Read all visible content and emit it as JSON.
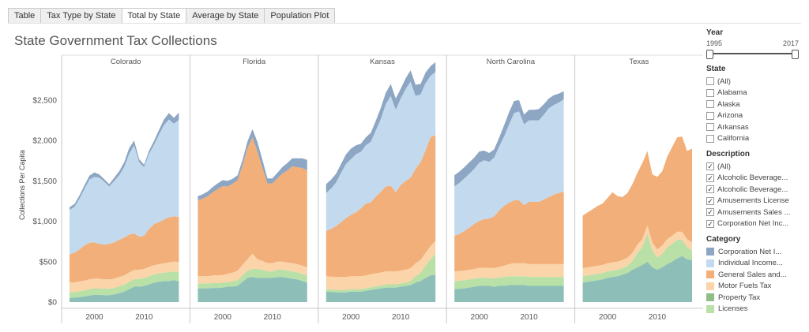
{
  "tabs": [
    {
      "label": "Table",
      "active": false
    },
    {
      "label": "Tax Type by State",
      "active": false
    },
    {
      "label": "Total by State",
      "active": true
    },
    {
      "label": "Average by State",
      "active": false
    },
    {
      "label": "Population Plot",
      "active": false
    }
  ],
  "page_title": "State Government Tax Collections",
  "filters": {
    "year": {
      "label": "Year",
      "min_label": "1995",
      "max_label": "2017",
      "range": [
        1995,
        2017
      ]
    },
    "state": {
      "label": "State",
      "items": [
        {
          "label": "(All)",
          "checked": false
        },
        {
          "label": "Alabama",
          "checked": false
        },
        {
          "label": "Alaska",
          "checked": false
        },
        {
          "label": "Arizona",
          "checked": false
        },
        {
          "label": "Arkansas",
          "checked": false
        },
        {
          "label": "California",
          "checked": false
        }
      ]
    },
    "description": {
      "label": "Description",
      "items": [
        {
          "label": "(All)",
          "checked": true
        },
        {
          "label": "Alcoholic Beverage...",
          "checked": true
        },
        {
          "label": "Alcoholic Beverage...",
          "checked": true
        },
        {
          "label": "Amusements License",
          "checked": true
        },
        {
          "label": "Amusements Sales ...",
          "checked": true
        },
        {
          "label": "Corporation Net Inc...",
          "checked": true
        }
      ]
    }
  },
  "legend": {
    "label": "Category",
    "items": [
      {
        "label": "Corporation Net I...",
        "color": "#8ca6c3"
      },
      {
        "label": "Individual Income...",
        "color": "#c3daee"
      },
      {
        "label": "General Sales and...",
        "color": "#f2af79"
      },
      {
        "label": "Motor Fuels Tax",
        "color": "#fbd4aa"
      },
      {
        "label": "Property Tax",
        "color": "#8fbf87"
      },
      {
        "label": "Licenses",
        "color": "#b9e0a7"
      }
    ]
  },
  "chart_data": {
    "type": "area",
    "stacked": true,
    "ylabel": "Collections Per Capita",
    "ylim": [
      0,
      2900
    ],
    "y_ticks": [
      {
        "value": 0,
        "label": "$0"
      },
      {
        "value": 500,
        "label": "$500"
      },
      {
        "value": 1000,
        "label": "$1,000"
      },
      {
        "value": 1500,
        "label": "$1,500"
      },
      {
        "value": 2000,
        "label": "$2,000"
      },
      {
        "value": 2500,
        "label": "$2,500"
      }
    ],
    "x_ticks": [
      2000,
      2010
    ],
    "x": [
      1995,
      1996,
      1997,
      1998,
      1999,
      2000,
      2001,
      2002,
      2003,
      2004,
      2005,
      2006,
      2007,
      2008,
      2009,
      2010,
      2011,
      2012,
      2013,
      2014,
      2015,
      2016,
      2017
    ],
    "series_colors": {
      "Base": "#8dbfb8",
      "Licenses": "#b9e0a7",
      "Motor Fuels": "#fbd4aa",
      "General Sales": "#f2af79",
      "Individual Income": "#c3daee",
      "Corporation": "#8ca6c3"
    },
    "panels": [
      {
        "name": "Colorado",
        "series": [
          {
            "name": "Base",
            "values": [
              50,
              55,
              60,
              70,
              80,
              90,
              90,
              85,
              85,
              95,
              110,
              130,
              160,
              190,
              190,
              200,
              220,
              240,
              250,
              260,
              260,
              270,
              260
            ]
          },
          {
            "name": "Licenses",
            "values": [
              70,
              70,
              75,
              75,
              80,
              80,
              80,
              80,
              80,
              80,
              85,
              85,
              90,
              95,
              95,
              95,
              100,
              100,
              105,
              105,
              110,
              110,
              115
            ]
          },
          {
            "name": "Motor Fuels",
            "values": [
              120,
              120,
              120,
              120,
              120,
              120,
              120,
              115,
              115,
              115,
              115,
              115,
              115,
              115,
              115,
              115,
              115,
              115,
              115,
              115,
              120,
              120,
              120
            ]
          },
          {
            "name": "General Sales",
            "values": [
              350,
              365,
              395,
              435,
              455,
              450,
              430,
              430,
              440,
              450,
              460,
              470,
              470,
              450,
              410,
              410,
              470,
              510,
              520,
              540,
              560,
              560,
              560
            ]
          },
          {
            "name": "Individual Income",
            "values": [
              550,
              570,
              630,
              700,
              780,
              810,
              820,
              780,
              710,
              760,
              800,
              870,
              1000,
              1090,
              920,
              850,
              930,
              980,
              1080,
              1170,
              1210,
              1150,
              1200
            ]
          },
          {
            "name": "Corporation",
            "values": [
              35,
              35,
              40,
              45,
              50,
              55,
              40,
              30,
              30,
              40,
              50,
              60,
              70,
              60,
              40,
              30,
              40,
              50,
              60,
              70,
              80,
              70,
              90
            ]
          }
        ]
      },
      {
        "name": "Florida",
        "series": [
          {
            "name": "Base",
            "values": [
              170,
              170,
              170,
              175,
              175,
              180,
              190,
              190,
              200,
              250,
              300,
              310,
              300,
              300,
              300,
              300,
              310,
              310,
              300,
              290,
              280,
              260,
              240
            ]
          },
          {
            "name": "Licenses",
            "values": [
              60,
              60,
              60,
              60,
              60,
              60,
              60,
              65,
              70,
              80,
              90,
              100,
              110,
              100,
              80,
              80,
              90,
              90,
              90,
              90,
              90,
              90,
              90
            ]
          },
          {
            "name": "Motor Fuels",
            "values": [
              90,
              90,
              90,
              95,
              95,
              95,
              100,
              110,
              120,
              130,
              140,
              190,
              120,
              110,
              100,
              100,
              100,
              100,
              100,
              100,
              100,
              100,
              100
            ]
          },
          {
            "name": "General Sales",
            "values": [
              940,
              960,
              990,
              1030,
              1070,
              1100,
              1080,
              1100,
              1120,
              1230,
              1380,
              1440,
              1330,
              1150,
              990,
              990,
              1030,
              1090,
              1140,
              1200,
              1200,
              1210,
              1200
            ]
          },
          {
            "name": "Individual Income",
            "values": [
              0,
              0,
              0,
              0,
              0,
              0,
              0,
              0,
              0,
              0,
              0,
              0,
              0,
              0,
              0,
              0,
              0,
              0,
              0,
              0,
              0,
              0,
              0
            ]
          },
          {
            "name": "Corporation",
            "values": [
              50,
              55,
              60,
              65,
              70,
              75,
              70,
              60,
              60,
              70,
              80,
              100,
              120,
              100,
              60,
              60,
              70,
              80,
              90,
              100,
              110,
              120,
              130
            ]
          }
        ]
      },
      {
        "name": "Kansas",
        "series": [
          {
            "name": "Base",
            "values": [
              130,
              125,
              120,
              120,
              120,
              130,
              130,
              130,
              140,
              150,
              160,
              170,
              180,
              180,
              180,
              190,
              200,
              210,
              240,
              260,
              300,
              330,
              340
            ]
          },
          {
            "name": "Licenses",
            "values": [
              30,
              30,
              30,
              30,
              30,
              30,
              30,
              30,
              30,
              35,
              35,
              35,
              40,
              40,
              40,
              40,
              40,
              50,
              80,
              100,
              150,
              200,
              260
            ]
          },
          {
            "name": "Motor Fuels",
            "values": [
              160,
              160,
              160,
              160,
              160,
              160,
              160,
              160,
              160,
              160,
              160,
              160,
              160,
              160,
              160,
              160,
              160,
              160,
              160,
              160,
              160,
              160,
              160
            ]
          },
          {
            "name": "General Sales",
            "values": [
              560,
              590,
              630,
              680,
              730,
              760,
              790,
              840,
              890,
              890,
              950,
              1000,
              1050,
              1060,
              980,
              1060,
              1100,
              1120,
              1170,
              1210,
              1270,
              1350,
              1310
            ]
          },
          {
            "name": "Individual Income",
            "values": [
              470,
              500,
              540,
              610,
              670,
              690,
              720,
              700,
              720,
              750,
              820,
              900,
              1020,
              1110,
              1020,
              1070,
              1140,
              1190,
              900,
              840,
              830,
              760,
              780
            ]
          },
          {
            "name": "Corporation",
            "values": [
              110,
              110,
              110,
              110,
              120,
              130,
              110,
              100,
              100,
              110,
              120,
              140,
              140,
              150,
              140,
              120,
              130,
              140,
              140,
              130,
              130,
              120,
              120
            ]
          }
        ]
      },
      {
        "name": "North Carolina",
        "series": [
          {
            "name": "Base",
            "values": [
              160,
              165,
              170,
              180,
              190,
              200,
              200,
              200,
              190,
              200,
              200,
              210,
              210,
              210,
              210,
              200,
              200,
              200,
              200,
              200,
              200,
              200,
              200
            ]
          },
          {
            "name": "Licenses",
            "values": [
              100,
              100,
              100,
              100,
              100,
              100,
              100,
              100,
              100,
              105,
              110,
              110,
              110,
              110,
              110,
              110,
              110,
              110,
              110,
              110,
              110,
              110,
              110
            ]
          },
          {
            "name": "Motor Fuels",
            "values": [
              120,
              120,
              120,
              120,
              120,
              125,
              125,
              125,
              130,
              130,
              140,
              150,
              160,
              160,
              160,
              160,
              160,
              160,
              160,
              160,
              160,
              160,
              160
            ]
          },
          {
            "name": "General Sales",
            "values": [
              440,
              460,
              490,
              520,
              560,
              580,
              600,
              610,
              640,
              700,
              740,
              760,
              780,
              780,
              720,
              770,
              770,
              770,
              800,
              830,
              860,
              880,
              900
            ]
          },
          {
            "name": "Individual Income",
            "values": [
              610,
              630,
              650,
              670,
              680,
              720,
              730,
              700,
              730,
              790,
              860,
              970,
              1080,
              1100,
              1000,
              1010,
              1010,
              1010,
              1050,
              1100,
              1110,
              1120,
              1140
            ]
          },
          {
            "name": "Corporation",
            "values": [
              140,
              140,
              140,
              140,
              140,
              140,
              120,
              110,
              100,
              110,
              140,
              150,
              150,
              140,
              120,
              130,
              130,
              140,
              130,
              120,
              120,
              110,
              100
            ]
          }
        ]
      },
      {
        "name": "Texas",
        "series": [
          {
            "name": "Base",
            "values": [
              240,
              250,
              260,
              270,
              280,
              300,
              310,
              320,
              340,
              360,
              400,
              430,
              460,
              500,
              430,
              400,
              430,
              470,
              500,
              540,
              570,
              530,
              520
            ]
          },
          {
            "name": "Licenses",
            "values": [
              80,
              80,
              80,
              80,
              80,
              80,
              80,
              80,
              80,
              90,
              110,
              180,
              220,
              350,
              210,
              150,
              170,
              210,
              220,
              230,
              200,
              150,
              120
            ]
          },
          {
            "name": "Motor Fuels",
            "values": [
              100,
              100,
              100,
              100,
              100,
              100,
              100,
              100,
              100,
              100,
              100,
              100,
              100,
              100,
              100,
              100,
              100,
              100,
              100,
              100,
              100,
              100,
              100
            ]
          },
          {
            "name": "General Sales",
            "values": [
              650,
              680,
              710,
              740,
              760,
              810,
              870,
              810,
              780,
              800,
              850,
              890,
              940,
              920,
              840,
              900,
              920,
              1020,
              1100,
              1170,
              1180,
              1090,
              1160
            ]
          },
          {
            "name": "Individual Income",
            "values": [
              0,
              0,
              0,
              0,
              0,
              0,
              0,
              0,
              0,
              0,
              0,
              0,
              0,
              0,
              0,
              0,
              0,
              0,
              0,
              0,
              0,
              0,
              0
            ]
          },
          {
            "name": "Corporation",
            "values": [
              0,
              0,
              0,
              0,
              0,
              0,
              0,
              0,
              0,
              0,
              0,
              0,
              0,
              0,
              0,
              0,
              0,
              0,
              0,
              0,
              0,
              0,
              0
            ]
          }
        ]
      }
    ]
  }
}
